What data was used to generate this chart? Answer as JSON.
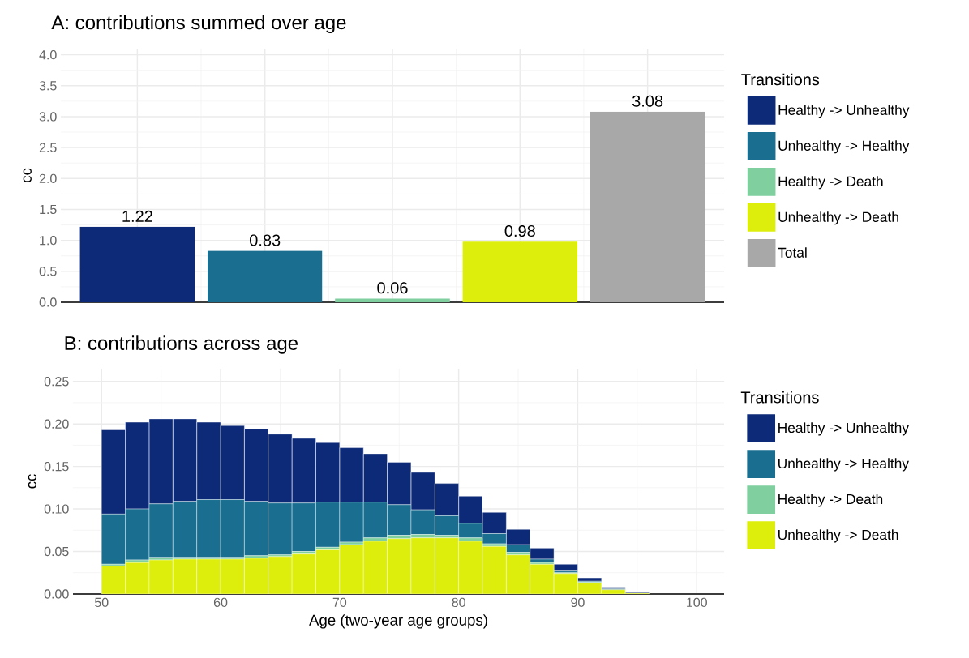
{
  "chart_data": [
    {
      "type": "bar",
      "title": "A: contributions summed over age",
      "ylabel": "cc",
      "legend_title": "Transitions",
      "categories": [
        null,
        null,
        null,
        null,
        null
      ],
      "series": [
        {
          "name": "Healthy -> Unhealthy",
          "color": "#0c2a78",
          "values": [
            1.22,
            null,
            null,
            null,
            null
          ]
        },
        {
          "name": "Unhealthy -> Healthy",
          "color": "#1a6f91",
          "values": [
            null,
            0.83,
            null,
            null,
            null
          ]
        },
        {
          "name": "Healthy -> Death",
          "color": "#7fcf9f",
          "values": [
            null,
            null,
            0.06,
            null,
            null
          ]
        },
        {
          "name": "Unhealthy -> Death",
          "color": "#ddee0c",
          "values": [
            null,
            null,
            null,
            0.98,
            null
          ]
        },
        {
          "name": "Total",
          "color": "#a8a8a8",
          "values": [
            null,
            null,
            null,
            null,
            3.08
          ]
        }
      ],
      "ylim": [
        0,
        4.1
      ],
      "yticks": [
        {
          "value": 0,
          "label": "0.0"
        },
        {
          "value": 0.5,
          "label": "0.5"
        },
        {
          "value": 1,
          "label": "1.0"
        },
        {
          "value": 1.5,
          "label": "1.5"
        },
        {
          "value": 2,
          "label": "2.0"
        },
        {
          "value": 2.5,
          "label": "2.5"
        },
        {
          "value": 3,
          "label": "3.0"
        },
        {
          "value": 3.5,
          "label": "3.5"
        },
        {
          "value": 4,
          "label": "4.0"
        }
      ],
      "grid": true,
      "legend": "right",
      "data_labels": true,
      "tick_labels": "y"
    },
    {
      "type": "bar",
      "stacked": true,
      "title": "B: contributions across age",
      "xlabel": "Age (two-year age groups)",
      "ylabel": "cc",
      "legend_title": "Transitions",
      "x": [
        51,
        53,
        55,
        57,
        59,
        61,
        63,
        65,
        67,
        69,
        71,
        73,
        75,
        77,
        79,
        81,
        83,
        85,
        87,
        89,
        91,
        93,
        95
      ],
      "series": [
        {
          "name": "Unhealthy -> Death",
          "color": "#ddee0c",
          "values": [
            0.033,
            0.037,
            0.04,
            0.041,
            0.041,
            0.041,
            0.042,
            0.044,
            0.047,
            0.052,
            0.058,
            0.062,
            0.065,
            0.066,
            0.066,
            0.062,
            0.056,
            0.046,
            0.035,
            0.024,
            0.013,
            0.005,
            0.001
          ]
        },
        {
          "name": "Healthy -> Death",
          "color": "#7fcf9f",
          "values": [
            0.002,
            0.003,
            0.003,
            0.002,
            0.002,
            0.002,
            0.003,
            0.002,
            0.003,
            0.003,
            0.003,
            0.004,
            0.004,
            0.004,
            0.003,
            0.004,
            0.003,
            0.003,
            0.002,
            0.001,
            0.001,
            0,
            0
          ]
        },
        {
          "name": "Unhealthy -> Healthy",
          "color": "#1a6f91",
          "values": [
            0.059,
            0.06,
            0.063,
            0.066,
            0.068,
            0.068,
            0.064,
            0.061,
            0.057,
            0.053,
            0.047,
            0.042,
            0.036,
            0.029,
            0.023,
            0.017,
            0.012,
            0.009,
            0.004,
            0.002,
            0.001,
            0.001,
            0
          ]
        },
        {
          "name": "Healthy -> Unhealthy",
          "color": "#0c2a78",
          "values": [
            0.099,
            0.102,
            0.1,
            0.097,
            0.091,
            0.087,
            0.085,
            0.081,
            0.076,
            0.07,
            0.064,
            0.057,
            0.05,
            0.044,
            0.038,
            0.032,
            0.025,
            0.018,
            0.013,
            0.008,
            0.004,
            0.002,
            0.001
          ]
        }
      ],
      "xlim": [
        47.6,
        102.3
      ],
      "ylim": [
        0,
        0.265
      ],
      "xticks": [
        50,
        60,
        70,
        80,
        90,
        100
      ],
      "yticks": [
        {
          "value": 0,
          "label": "0.00"
        },
        {
          "value": 0.05,
          "label": "0.05"
        },
        {
          "value": 0.1,
          "label": "0.10"
        },
        {
          "value": 0.15,
          "label": "0.15"
        },
        {
          "value": 0.2,
          "label": "0.20"
        },
        {
          "value": 0.25,
          "label": "0.25"
        }
      ],
      "grid": true,
      "legend": "right"
    }
  ]
}
